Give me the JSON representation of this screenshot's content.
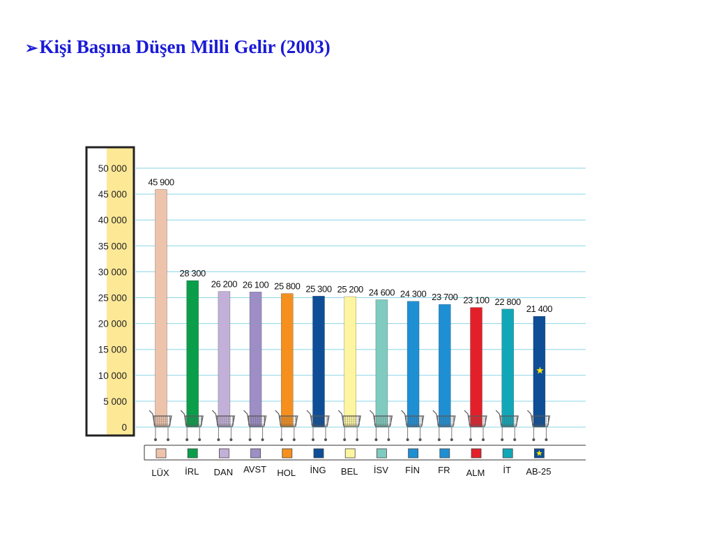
{
  "slide": {
    "bullet": "➢",
    "title": "Kişi Başına Düşen Milli Gelir (2003)"
  },
  "chart_data": {
    "type": "bar",
    "title": "Kişi Başına Düşen Milli Gelir (2003)",
    "xlabel": "",
    "ylabel": "",
    "ylim": [
      0,
      50000
    ],
    "yticks": [
      0,
      5000,
      10000,
      15000,
      20000,
      25000,
      30000,
      35000,
      40000,
      45000,
      50000
    ],
    "ytick_labels": [
      "0",
      "5 000",
      "10 000",
      "15 000",
      "20 000",
      "25 000",
      "30 000",
      "35 000",
      "40 000",
      "45 000",
      "50 000"
    ],
    "grid": true,
    "categories": [
      "LÜX",
      "İRL",
      "DAN",
      "AVST",
      "HOL",
      "İNG",
      "BEL",
      "İSV",
      "FİN",
      "FR",
      "ALM",
      "İT",
      "AB-25"
    ],
    "values": [
      45900,
      28300,
      26200,
      26100,
      25800,
      25300,
      25200,
      24600,
      24300,
      23700,
      23100,
      22800,
      21400
    ],
    "value_labels": [
      "45 900",
      "28 300",
      "26 200",
      "26 100",
      "25 800",
      "25 300",
      "25 200",
      "24 600",
      "24 300",
      "23 700",
      "23 100",
      "22 800",
      "21 400"
    ],
    "colors": [
      "#eec3ab",
      "#0a9e4a",
      "#c2b0d8",
      "#9d8ec6",
      "#f5901e",
      "#0d4e97",
      "#fdf5a0",
      "#7fcbbf",
      "#1f8fd4",
      "#1f8fd4",
      "#e3202a",
      "#12a7b8",
      "#0d4e97"
    ],
    "legend": "bottom",
    "icon": "shopping-cart-icon",
    "marker_icon": "eu-star-icon",
    "colors_meta": {
      "grid": "#8ad5e6",
      "axis_panel": "#fde896",
      "frame": "#222222",
      "title": "#1a1ad6"
    }
  }
}
